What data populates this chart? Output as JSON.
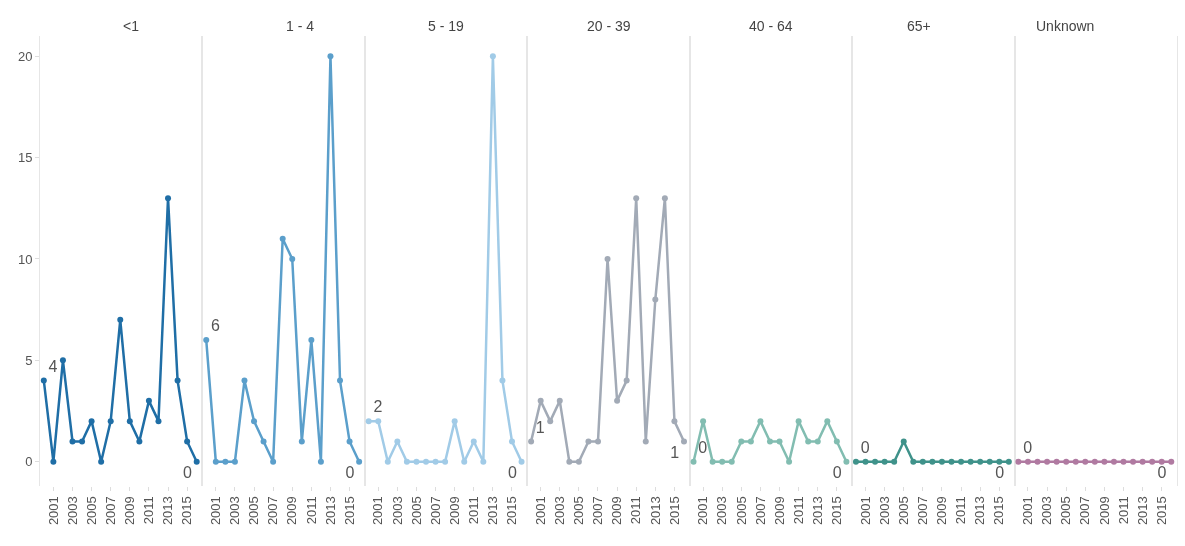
{
  "chart_data": [
    {
      "type": "line",
      "title": "<1",
      "x": [
        2000,
        2001,
        2002,
        2003,
        2004,
        2005,
        2006,
        2007,
        2008,
        2009,
        2010,
        2011,
        2012,
        2013,
        2014,
        2015,
        2016
      ],
      "series": [
        {
          "color": "#1f6ea6",
          "values": [
            4,
            0,
            5,
            1,
            1,
            2,
            0,
            2,
            7,
            2,
            1,
            3,
            2,
            13,
            4,
            1,
            0
          ],
          "value_labels": [
            "4",
            null,
            null,
            null,
            null,
            null,
            null,
            null,
            null,
            null,
            null,
            null,
            null,
            null,
            null,
            null,
            "0"
          ]
        }
      ],
      "xlim": [
        1999.6,
        2016.6
      ],
      "xticks": [
        2001,
        2003,
        2005,
        2007,
        2009,
        2011,
        2013,
        2015
      ],
      "ylim": [
        -1.2,
        21
      ],
      "yticks": [
        0,
        5,
        10,
        15,
        20
      ],
      "marker": "circle",
      "grid": false
    },
    {
      "type": "line",
      "title": "1 - 4",
      "x": [
        2000,
        2001,
        2002,
        2003,
        2004,
        2005,
        2006,
        2007,
        2008,
        2009,
        2010,
        2011,
        2012,
        2013,
        2014,
        2015,
        2016
      ],
      "series": [
        {
          "color": "#5b9fcb",
          "values": [
            6,
            0,
            0,
            0,
            4,
            2,
            1,
            0,
            11,
            10,
            1,
            6,
            0,
            20,
            4,
            1,
            0
          ],
          "value_labels": [
            "6",
            null,
            null,
            null,
            null,
            null,
            null,
            null,
            null,
            null,
            null,
            null,
            null,
            null,
            null,
            null,
            "0"
          ]
        }
      ],
      "xlim": [
        1999.6,
        2016.6
      ],
      "xticks": [
        2001,
        2003,
        2005,
        2007,
        2009,
        2011,
        2013,
        2015
      ],
      "ylim": [
        -1.2,
        21
      ],
      "yticks": [
        0,
        5,
        10,
        15,
        20
      ],
      "tick_labels": "x",
      "marker": "circle",
      "grid": false
    },
    {
      "type": "line",
      "title": "5 - 19",
      "x": [
        2000,
        2001,
        2002,
        2003,
        2004,
        2005,
        2006,
        2007,
        2008,
        2009,
        2010,
        2011,
        2012,
        2013,
        2014,
        2015,
        2016
      ],
      "series": [
        {
          "color": "#a1cbe7",
          "values": [
            2,
            2,
            0,
            1,
            0,
            0,
            0,
            0,
            0,
            2,
            0,
            1,
            0,
            20,
            4,
            1,
            0
          ],
          "value_labels": [
            "2",
            null,
            null,
            null,
            null,
            null,
            null,
            null,
            null,
            null,
            null,
            null,
            null,
            null,
            null,
            null,
            "0"
          ]
        }
      ],
      "xlim": [
        1999.6,
        2016.6
      ],
      "xticks": [
        2001,
        2003,
        2005,
        2007,
        2009,
        2011,
        2013,
        2015
      ],
      "ylim": [
        -1.2,
        21
      ],
      "yticks": [
        0,
        5,
        10,
        15,
        20
      ],
      "tick_labels": "x",
      "marker": "circle",
      "grid": false
    },
    {
      "type": "line",
      "title": "20 - 39",
      "x": [
        2000,
        2001,
        2002,
        2003,
        2004,
        2005,
        2006,
        2007,
        2008,
        2009,
        2010,
        2011,
        2012,
        2013,
        2014,
        2015,
        2016
      ],
      "series": [
        {
          "color": "#a2aab6",
          "values": [
            1,
            3,
            2,
            3,
            0,
            0,
            1,
            1,
            10,
            3,
            4,
            13,
            1,
            8,
            13,
            2,
            1
          ],
          "value_labels": [
            "1",
            null,
            null,
            null,
            null,
            null,
            null,
            null,
            null,
            null,
            null,
            null,
            null,
            null,
            null,
            null,
            "1"
          ]
        }
      ],
      "xlim": [
        1999.6,
        2016.6
      ],
      "xticks": [
        2001,
        2003,
        2005,
        2007,
        2009,
        2011,
        2013,
        2015
      ],
      "ylim": [
        -1.2,
        21
      ],
      "yticks": [
        0,
        5,
        10,
        15,
        20
      ],
      "tick_labels": "x",
      "marker": "circle",
      "grid": false
    },
    {
      "type": "line",
      "title": "40 - 64",
      "x": [
        2000,
        2001,
        2002,
        2003,
        2004,
        2005,
        2006,
        2007,
        2008,
        2009,
        2010,
        2011,
        2012,
        2013,
        2014,
        2015,
        2016
      ],
      "series": [
        {
          "color": "#82bdb1",
          "values": [
            0,
            2,
            0,
            0,
            0,
            1,
            1,
            2,
            1,
            1,
            0,
            2,
            1,
            1,
            2,
            1,
            0
          ],
          "value_labels": [
            "0",
            null,
            null,
            null,
            null,
            null,
            null,
            null,
            null,
            null,
            null,
            null,
            null,
            null,
            null,
            null,
            "0"
          ]
        }
      ],
      "xlim": [
        1999.6,
        2016.6
      ],
      "xticks": [
        2001,
        2003,
        2005,
        2007,
        2009,
        2011,
        2013,
        2015
      ],
      "ylim": [
        -1.2,
        21
      ],
      "yticks": [
        0,
        5,
        10,
        15,
        20
      ],
      "tick_labels": "x",
      "marker": "circle",
      "grid": false
    },
    {
      "type": "line",
      "title": "65+",
      "x": [
        2000,
        2001,
        2002,
        2003,
        2004,
        2005,
        2006,
        2007,
        2008,
        2009,
        2010,
        2011,
        2012,
        2013,
        2014,
        2015,
        2016
      ],
      "series": [
        {
          "color": "#3f928a",
          "values": [
            0,
            0,
            0,
            0,
            0,
            1,
            0,
            0,
            0,
            0,
            0,
            0,
            0,
            0,
            0,
            0,
            0
          ],
          "value_labels": [
            "0",
            null,
            null,
            null,
            null,
            null,
            null,
            null,
            null,
            null,
            null,
            null,
            null,
            null,
            null,
            null,
            "0"
          ]
        }
      ],
      "xlim": [
        1999.6,
        2016.6
      ],
      "xticks": [
        2001,
        2003,
        2005,
        2007,
        2009,
        2011,
        2013,
        2015
      ],
      "ylim": [
        -1.2,
        21
      ],
      "yticks": [
        0,
        5,
        10,
        15,
        20
      ],
      "tick_labels": "x",
      "marker": "circle",
      "grid": false
    },
    {
      "type": "line",
      "title": "Unknown",
      "x": [
        2000,
        2001,
        2002,
        2003,
        2004,
        2005,
        2006,
        2007,
        2008,
        2009,
        2010,
        2011,
        2012,
        2013,
        2014,
        2015,
        2016
      ],
      "series": [
        {
          "color": "#b07aa1",
          "values": [
            0,
            0,
            0,
            0,
            0,
            0,
            0,
            0,
            0,
            0,
            0,
            0,
            0,
            0,
            0,
            0,
            0
          ],
          "value_labels": [
            "0",
            null,
            null,
            null,
            null,
            null,
            null,
            null,
            null,
            null,
            null,
            null,
            null,
            null,
            null,
            null,
            "0"
          ]
        }
      ],
      "xlim": [
        1999.6,
        2016.6
      ],
      "xticks": [
        2001,
        2003,
        2005,
        2007,
        2009,
        2011,
        2013,
        2015
      ],
      "ylim": [
        -1.2,
        21
      ],
      "yticks": [
        0,
        5,
        10,
        15,
        20
      ],
      "tick_labels": "x",
      "marker": "circle",
      "grid": false
    }
  ]
}
